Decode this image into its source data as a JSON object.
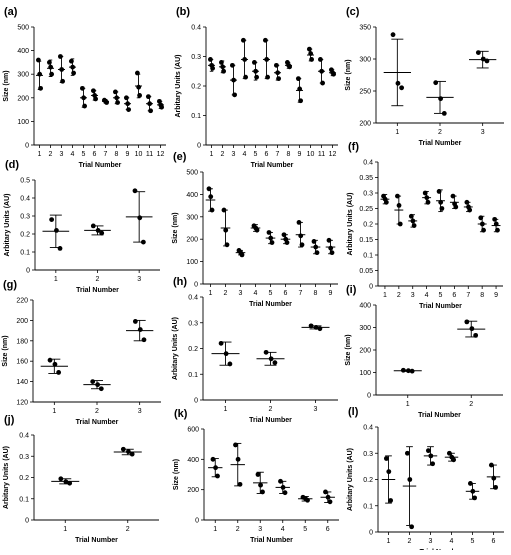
{
  "figure": {
    "colors": {
      "ink": "#000000",
      "background": "#ffffff"
    }
  },
  "chart_data": [
    {
      "id": "a",
      "label": "(a)",
      "type": "scatter",
      "xlabel": "Trial Number",
      "ylabel": "Size (nm)",
      "categories": [
        "1",
        "2",
        "3",
        "4",
        "5",
        "6",
        "7",
        "8",
        "9",
        "10",
        "11",
        "12"
      ],
      "ylim": [
        0,
        500
      ],
      "yticks": [
        0,
        100,
        200,
        300,
        400,
        500
      ],
      "groups": [
        {
          "mean": 295,
          "sd": 60,
          "points": [
            360,
            300,
            240
          ]
        },
        {
          "mean": 325,
          "sd": 35,
          "points": [
            350,
            330,
            300
          ]
        },
        {
          "mean": 320,
          "sd": 55,
          "points": [
            375,
            320,
            270
          ]
        },
        {
          "mean": 330,
          "sd": 35,
          "points": [
            355,
            330,
            305
          ]
        },
        {
          "mean": 200,
          "sd": 40,
          "points": [
            240,
            200,
            165
          ]
        },
        {
          "mean": 210,
          "sd": 20,
          "points": [
            230,
            210,
            195
          ]
        },
        {
          "mean": 185,
          "sd": 8,
          "points": [
            190,
            185,
            180
          ]
        },
        {
          "mean": 200,
          "sd": 25,
          "points": [
            225,
            200,
            180
          ]
        },
        {
          "mean": 175,
          "sd": 25,
          "points": [
            200,
            175,
            150
          ]
        },
        {
          "mean": 250,
          "sd": 50,
          "points": [
            305,
            245,
            210
          ]
        },
        {
          "mean": 175,
          "sd": 30,
          "points": [
            205,
            175,
            145
          ]
        },
        {
          "mean": 170,
          "sd": 15,
          "points": [
            185,
            170,
            160
          ]
        }
      ]
    },
    {
      "id": "b",
      "label": "(b)",
      "type": "scatter",
      "xlabel": "Trial Number",
      "ylabel": "Arbitary Units (AU)",
      "categories": [
        "1",
        "2",
        "3",
        "4",
        "5",
        "6",
        "7",
        "8",
        "9",
        "10",
        "11",
        "12"
      ],
      "ylim": [
        0,
        0.4
      ],
      "yticks": [
        0,
        0.1,
        0.2,
        0.3,
        0.4
      ],
      "groups": [
        {
          "mean": 0.27,
          "sd": 0.02,
          "points": [
            0.29,
            0.27,
            0.26
          ]
        },
        {
          "mean": 0.265,
          "sd": 0.02,
          "points": [
            0.28,
            0.265,
            0.25
          ]
        },
        {
          "mean": 0.22,
          "sd": 0.05,
          "points": [
            0.27,
            0.22,
            0.17
          ]
        },
        {
          "mean": 0.29,
          "sd": 0.065,
          "points": [
            0.355,
            0.29,
            0.23
          ]
        },
        {
          "mean": 0.25,
          "sd": 0.03,
          "points": [
            0.28,
            0.25,
            0.23
          ]
        },
        {
          "mean": 0.29,
          "sd": 0.065,
          "points": [
            0.355,
            0.29,
            0.23
          ]
        },
        {
          "mean": 0.245,
          "sd": 0.025,
          "points": [
            0.27,
            0.245,
            0.225
          ]
        },
        {
          "mean": 0.27,
          "sd": 0.01,
          "points": [
            0.28,
            0.27,
            0.265
          ]
        },
        {
          "mean": 0.185,
          "sd": 0.04,
          "points": [
            0.225,
            0.19,
            0.15
          ]
        },
        {
          "mean": 0.305,
          "sd": 0.02,
          "points": [
            0.325,
            0.31,
            0.29
          ]
        },
        {
          "mean": 0.25,
          "sd": 0.04,
          "points": [
            0.29,
            0.25,
            0.21
          ]
        },
        {
          "mean": 0.245,
          "sd": 0.01,
          "points": [
            0.255,
            0.245,
            0.24
          ]
        }
      ]
    },
    {
      "id": "c",
      "label": "(c)",
      "type": "scatter",
      "xlabel": "Trial Number",
      "ylabel": "Size (nm)",
      "categories": [
        "1",
        "2",
        "3"
      ],
      "ylim": [
        200,
        350
      ],
      "yticks": [
        200,
        250,
        300,
        350
      ],
      "groups": [
        {
          "mean": 279,
          "sd": 52,
          "points": [
            338,
            262,
            255
          ]
        },
        {
          "mean": 240,
          "sd": 25,
          "points": [
            263,
            238,
            215
          ]
        },
        {
          "mean": 299,
          "sd": 13,
          "points": [
            310,
            300,
            297
          ]
        }
      ]
    },
    {
      "id": "d",
      "label": "(d)",
      "type": "scatter",
      "xlabel": "Trial Number",
      "ylabel": "Arbitary Units (AU)",
      "categories": [
        "1",
        "2",
        "3"
      ],
      "ylim": [
        0,
        0.5
      ],
      "yticks": [
        0,
        0.1,
        0.2,
        0.3,
        0.4,
        0.5
      ],
      "groups": [
        {
          "mean": 0.215,
          "sd": 0.09,
          "points": [
            0.28,
            0.22,
            0.12
          ]
        },
        {
          "mean": 0.22,
          "sd": 0.025,
          "points": [
            0.245,
            0.22,
            0.205
          ]
        },
        {
          "mean": 0.295,
          "sd": 0.14,
          "points": [
            0.44,
            0.29,
            0.155
          ]
        }
      ]
    },
    {
      "id": "e",
      "label": "(e)",
      "type": "scatter",
      "xlabel": "Trial Number",
      "ylabel": "Size (nm)",
      "categories": [
        "1",
        "2",
        "3",
        "4",
        "5",
        "6",
        "7",
        "8",
        "9"
      ],
      "ylim": [
        0,
        500
      ],
      "yticks": [
        0,
        100,
        200,
        300,
        400,
        500
      ],
      "groups": [
        {
          "mean": 375,
          "sd": 50,
          "points": [
            425,
            390,
            330
          ]
        },
        {
          "mean": 250,
          "sd": 80,
          "points": [
            330,
            240,
            175
          ]
        },
        {
          "mean": 140,
          "sd": 10,
          "points": [
            150,
            140,
            130
          ]
        },
        {
          "mean": 250,
          "sd": 15,
          "points": [
            260,
            250,
            240
          ]
        },
        {
          "mean": 205,
          "sd": 25,
          "points": [
            230,
            205,
            185
          ]
        },
        {
          "mean": 200,
          "sd": 20,
          "points": [
            220,
            200,
            185
          ]
        },
        {
          "mean": 220,
          "sd": 55,
          "points": [
            275,
            215,
            175
          ]
        },
        {
          "mean": 165,
          "sd": 30,
          "points": [
            190,
            165,
            140
          ]
        },
        {
          "mean": 165,
          "sd": 30,
          "points": [
            195,
            160,
            140
          ]
        }
      ]
    },
    {
      "id": "f",
      "label": "(f)",
      "type": "scatter",
      "xlabel": "Trial Number",
      "ylabel": "Arbitary Units (AU)",
      "categories": [
        "1",
        "2",
        "3",
        "4",
        "5",
        "6",
        "7",
        "8",
        "9"
      ],
      "ylim": [
        0,
        0.4
      ],
      "yticks": [
        0,
        0.05,
        0.1,
        0.15,
        0.2,
        0.25,
        0.3,
        0.35,
        0.4
      ],
      "groups": [
        {
          "mean": 0.28,
          "sd": 0.015,
          "points": [
            0.29,
            0.28,
            0.27
          ]
        },
        {
          "mean": 0.245,
          "sd": 0.045,
          "points": [
            0.29,
            0.26,
            0.2
          ]
        },
        {
          "mean": 0.21,
          "sd": 0.02,
          "points": [
            0.225,
            0.21,
            0.195
          ]
        },
        {
          "mean": 0.285,
          "sd": 0.02,
          "points": [
            0.3,
            0.285,
            0.27
          ]
        },
        {
          "mean": 0.275,
          "sd": 0.035,
          "points": [
            0.305,
            0.27,
            0.25
          ]
        },
        {
          "mean": 0.27,
          "sd": 0.02,
          "points": [
            0.29,
            0.265,
            0.255
          ]
        },
        {
          "mean": 0.255,
          "sd": 0.015,
          "points": [
            0.27,
            0.255,
            0.245
          ]
        },
        {
          "mean": 0.2,
          "sd": 0.025,
          "points": [
            0.22,
            0.2,
            0.18
          ]
        },
        {
          "mean": 0.195,
          "sd": 0.02,
          "points": [
            0.215,
            0.2,
            0.18
          ]
        }
      ]
    },
    {
      "id": "g",
      "label": "(g)",
      "type": "scatter",
      "xlabel": "Trial Number",
      "ylabel": "Size (nm)",
      "categories": [
        "1",
        "2",
        "3"
      ],
      "ylim": [
        120,
        220
      ],
      "yticks": [
        120,
        140,
        160,
        180,
        200,
        220
      ],
      "groups": [
        {
          "mean": 155,
          "sd": 7,
          "points": [
            161,
            157,
            149
          ]
        },
        {
          "mean": 137,
          "sd": 4,
          "points": [
            140,
            137,
            133
          ]
        },
        {
          "mean": 190,
          "sd": 10,
          "points": [
            199,
            191,
            181
          ]
        }
      ]
    },
    {
      "id": "h",
      "label": "(h)",
      "type": "scatter",
      "xlabel": "Trial Number",
      "ylabel": "Arbitary Units (AU)",
      "categories": [
        "1",
        "2",
        "3"
      ],
      "ylim": [
        0,
        0.4
      ],
      "yticks": [
        0,
        0.1,
        0.2,
        0.3,
        0.4
      ],
      "groups": [
        {
          "mean": 0.18,
          "sd": 0.045,
          "points": [
            0.22,
            0.18,
            0.14
          ]
        },
        {
          "mean": 0.16,
          "sd": 0.025,
          "points": [
            0.185,
            0.16,
            0.145
          ]
        },
        {
          "mean": 0.282,
          "sd": 0.006,
          "points": [
            0.288,
            0.282,
            0.277
          ]
        }
      ]
    },
    {
      "id": "i",
      "label": "(i)",
      "type": "scatter",
      "xlabel": "Trial Number",
      "ylabel": "Size (nm)",
      "categories": [
        "1",
        "2"
      ],
      "ylim": [
        0,
        400
      ],
      "yticks": [
        0,
        100,
        200,
        300,
        400
      ],
      "groups": [
        {
          "mean": 108,
          "sd": 3,
          "points": [
            110,
            108,
            106
          ]
        },
        {
          "mean": 293,
          "sd": 35,
          "points": [
            325,
            295,
            265
          ]
        }
      ]
    },
    {
      "id": "j",
      "label": "(j)",
      "type": "scatter",
      "xlabel": "Trial Number",
      "ylabel": "Arbitary Units (AU)",
      "categories": [
        "1",
        "2"
      ],
      "ylim": [
        0,
        0.4
      ],
      "yticks": [
        0,
        0.1,
        0.2,
        0.3,
        0.4
      ],
      "groups": [
        {
          "mean": 0.182,
          "sd": 0.012,
          "points": [
            0.194,
            0.18,
            0.173
          ]
        },
        {
          "mean": 0.32,
          "sd": 0.013,
          "points": [
            0.333,
            0.322,
            0.31
          ]
        }
      ]
    },
    {
      "id": "k",
      "label": "(k)",
      "type": "scatter",
      "xlabel": "Trial Number",
      "ylabel": "Size (nm)",
      "categories": [
        "1",
        "2",
        "3",
        "4",
        "5",
        "6"
      ],
      "ylim": [
        0,
        600
      ],
      "yticks": [
        0,
        200,
        400,
        600
      ],
      "groups": [
        {
          "mean": 345,
          "sd": 60,
          "points": [
            400,
            345,
            290
          ]
        },
        {
          "mean": 365,
          "sd": 140,
          "points": [
            495,
            400,
            235
          ]
        },
        {
          "mean": 245,
          "sd": 70,
          "points": [
            300,
            230,
            185
          ]
        },
        {
          "mean": 215,
          "sd": 40,
          "points": [
            255,
            215,
            180
          ]
        },
        {
          "mean": 140,
          "sd": 15,
          "points": [
            150,
            140,
            130
          ]
        },
        {
          "mean": 150,
          "sd": 35,
          "points": [
            185,
            150,
            120
          ]
        }
      ]
    },
    {
      "id": "l",
      "label": "(l)",
      "type": "scatter",
      "xlabel": "Trial Number",
      "ylabel": "Arbitary Units (AU)",
      "categories": [
        "1",
        "2",
        "3",
        "4",
        "5",
        "6"
      ],
      "ylim": [
        0,
        0.4
      ],
      "yticks": [
        0,
        0.1,
        0.2,
        0.3,
        0.4
      ],
      "groups": [
        {
          "mean": 0.2,
          "sd": 0.09,
          "points": [
            0.28,
            0.23,
            0.12
          ]
        },
        {
          "mean": 0.175,
          "sd": 0.15,
          "points": [
            0.3,
            0.2,
            0.02
          ]
        },
        {
          "mean": 0.29,
          "sd": 0.035,
          "points": [
            0.31,
            0.29,
            0.26
          ]
        },
        {
          "mean": 0.285,
          "sd": 0.015,
          "points": [
            0.3,
            0.285,
            0.275
          ]
        },
        {
          "mean": 0.155,
          "sd": 0.03,
          "points": [
            0.185,
            0.155,
            0.13
          ]
        },
        {
          "mean": 0.21,
          "sd": 0.045,
          "points": [
            0.255,
            0.205,
            0.17
          ]
        }
      ]
    }
  ]
}
